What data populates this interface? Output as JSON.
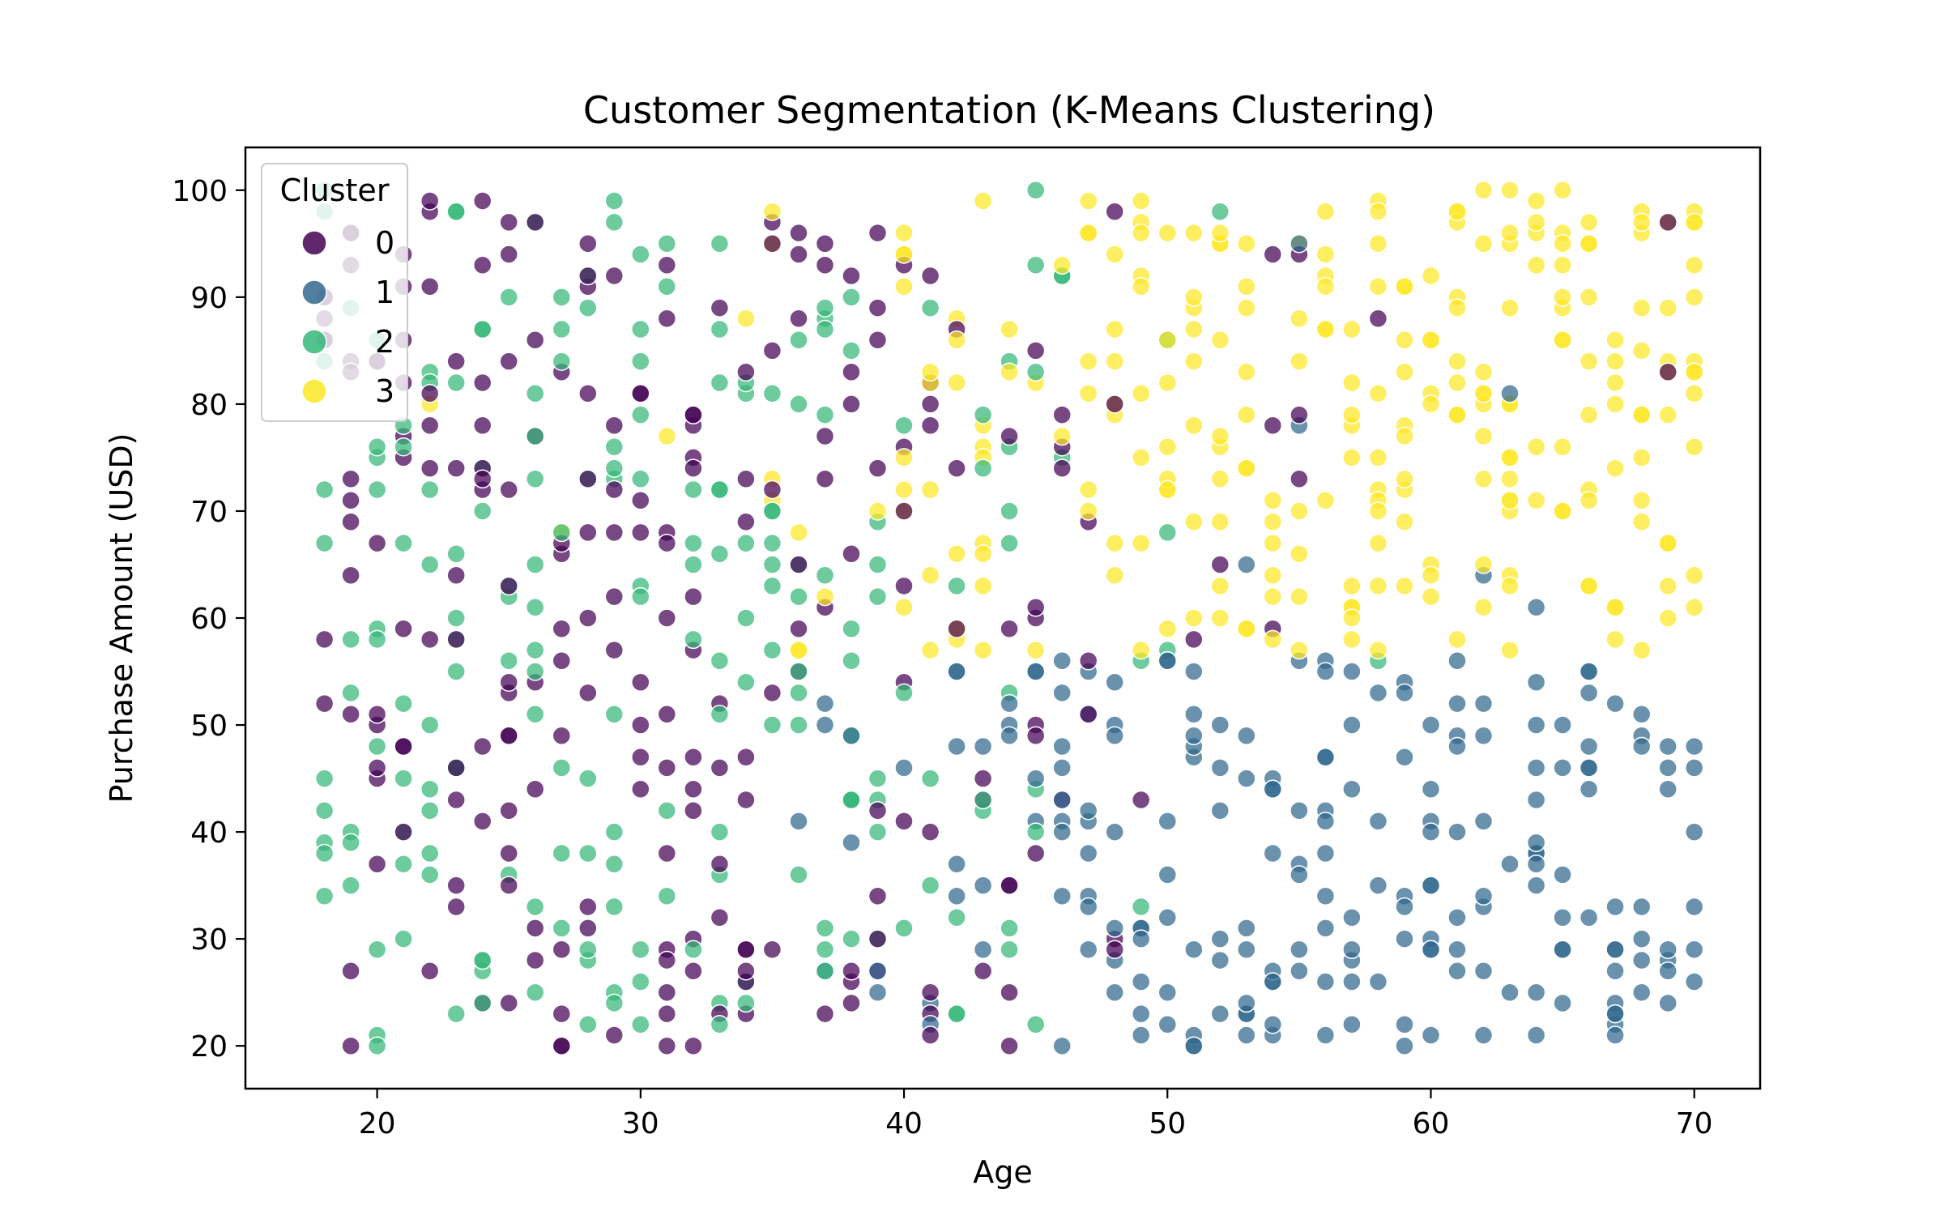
{
  "chart_data": {
    "type": "scatter",
    "title": "Customer Segmentation (K-Means Clustering)",
    "xlabel": "Age",
    "ylabel": "Purchase Amount (USD)",
    "xlim": [
      15,
      72.5
    ],
    "ylim": [
      16,
      104
    ],
    "xticks": [
      "20",
      "30",
      "40",
      "50",
      "60",
      "70"
    ],
    "yticks": [
      "20",
      "30",
      "40",
      "50",
      "60",
      "70",
      "80",
      "90",
      "100"
    ],
    "grid": false,
    "legend": {
      "title": "Cluster",
      "position": "top-left"
    },
    "x_domain": [
      18,
      70
    ],
    "y_domain": [
      20,
      100
    ],
    "points_per_age": 18,
    "palette": {
      "0": "#440154",
      "1": "#31688e",
      "2": "#35b779",
      "3": "#fde725"
    },
    "series": [
      {
        "name": "0",
        "color": "#440154",
        "region": "age 18-50, purchase 20-100, mainly 60-100 for ages 40-55"
      },
      {
        "name": "1",
        "color": "#31688e",
        "region": "age 36-70, purchase 20-60"
      },
      {
        "name": "2",
        "color": "#35b779",
        "region": "age 18-46, purchase 20-100"
      },
      {
        "name": "3",
        "color": "#fde725",
        "region": "age 34-70, purchase 55-100"
      }
    ]
  }
}
